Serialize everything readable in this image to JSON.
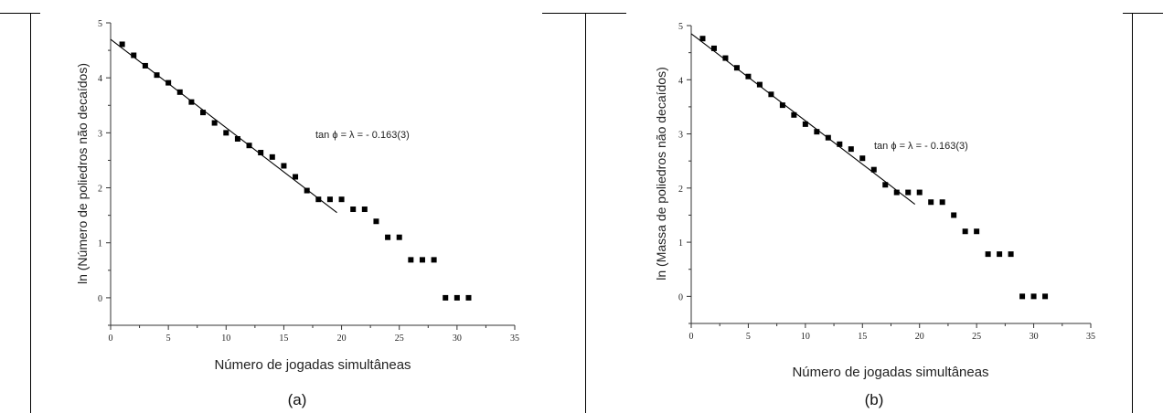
{
  "chart_data": [
    {
      "type": "scatter",
      "title": "",
      "caption": "(a)",
      "xlabel": "Número de jogadas simultâneas",
      "ylabel": "ln (Número de poliedros não decaídos)",
      "xlim": [
        0,
        35
      ],
      "ylim": [
        -0.5,
        5
      ],
      "x_ticks": [
        0,
        5,
        10,
        15,
        20,
        25,
        30,
        35
      ],
      "y_ticks": [
        0,
        1,
        2,
        3,
        4,
        5
      ],
      "annotation": "tan ϕ = λ = - 0.163(3)",
      "grid": false,
      "points": {
        "x": [
          1,
          2,
          3,
          4,
          5,
          6,
          7,
          8,
          9,
          10,
          11,
          12,
          13,
          14,
          15,
          16,
          17,
          18,
          19,
          20,
          21,
          22,
          23,
          24,
          25,
          26,
          27,
          28,
          29,
          30,
          31
        ],
        "y": [
          4.61,
          4.41,
          4.22,
          4.05,
          3.91,
          3.74,
          3.56,
          3.37,
          3.18,
          3.0,
          2.89,
          2.77,
          2.64,
          2.56,
          2.4,
          2.2,
          1.95,
          1.79,
          1.79,
          1.79,
          1.61,
          1.61,
          1.39,
          1.1,
          1.1,
          0.69,
          0.69,
          0.69,
          0.0,
          0.0,
          0.0
        ]
      },
      "fit_line": {
        "x": [
          0,
          19.6
        ],
        "y": [
          4.7,
          1.55
        ]
      }
    },
    {
      "type": "scatter",
      "title": "",
      "caption": "(b)",
      "xlabel": "Número de jogadas simultâneas",
      "ylabel": "ln (Massa de poliedros não decaídos)",
      "xlim": [
        0,
        35
      ],
      "ylim": [
        -0.5,
        5
      ],
      "x_ticks": [
        0,
        5,
        10,
        15,
        20,
        25,
        30,
        35
      ],
      "y_ticks": [
        0,
        1,
        2,
        3,
        4,
        5
      ],
      "annotation": "tan ϕ = λ = - 0.163(3)",
      "grid": false,
      "points": {
        "x": [
          1,
          2,
          3,
          4,
          5,
          6,
          7,
          8,
          9,
          10,
          11,
          12,
          13,
          14,
          15,
          16,
          17,
          18,
          19,
          20,
          21,
          22,
          23,
          24,
          25,
          26,
          27,
          28,
          29,
          30,
          31
        ],
        "y": [
          4.76,
          4.58,
          4.4,
          4.22,
          4.06,
          3.91,
          3.73,
          3.53,
          3.35,
          3.18,
          3.04,
          2.93,
          2.81,
          2.72,
          2.55,
          2.34,
          2.06,
          1.92,
          1.92,
          1.92,
          1.74,
          1.74,
          1.5,
          1.2,
          1.2,
          0.78,
          0.78,
          0.78,
          0.0,
          0.0,
          0.0
        ]
      },
      "fit_line": {
        "x": [
          0,
          19.6
        ],
        "y": [
          4.85,
          1.7
        ]
      }
    }
  ]
}
